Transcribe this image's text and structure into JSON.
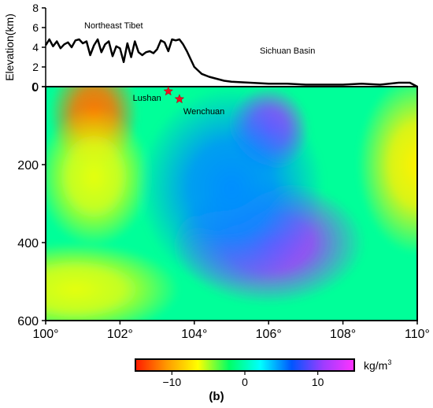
{
  "figure_label": "(b)",
  "chart_data": [
    {
      "type": "line",
      "panel": "elevation-profile",
      "ylabel": "Elevation(km)",
      "ylim": [
        0,
        8
      ],
      "yticks": [
        0,
        2,
        4,
        6,
        8
      ],
      "xlim": [
        100,
        110
      ],
      "series": [
        {
          "x": [
            100.0,
            100.1,
            100.2,
            100.3,
            100.4,
            100.5,
            100.6,
            100.7,
            100.8,
            100.9,
            101.0,
            101.1,
            101.2,
            101.3,
            101.4,
            101.5,
            101.6,
            101.7,
            101.8,
            101.9,
            102.0,
            102.1,
            102.2,
            102.3,
            102.4,
            102.5,
            102.6,
            102.7,
            102.8,
            102.9,
            103.0,
            103.1,
            103.2,
            103.3,
            103.4,
            103.5,
            103.6,
            103.7,
            103.8,
            103.9,
            104.0,
            104.2,
            104.4,
            104.6,
            104.8,
            105.0,
            105.5,
            106.0,
            106.5,
            107.0,
            107.5,
            108.0,
            108.5,
            109.0,
            109.5,
            109.8,
            110.0
          ],
          "y": [
            4.2,
            4.8,
            4.1,
            4.6,
            3.9,
            4.3,
            4.5,
            4.0,
            4.7,
            4.8,
            4.4,
            4.6,
            3.2,
            4.2,
            4.8,
            3.5,
            4.3,
            4.6,
            3.1,
            4.1,
            3.9,
            2.5,
            4.4,
            3.0,
            4.6,
            3.5,
            3.2,
            3.5,
            3.6,
            3.4,
            3.8,
            4.7,
            4.5,
            3.6,
            4.8,
            4.7,
            4.8,
            4.3,
            3.6,
            2.8,
            2.0,
            1.3,
            1.0,
            0.8,
            0.6,
            0.5,
            0.4,
            0.3,
            0.3,
            0.2,
            0.2,
            0.2,
            0.3,
            0.2,
            0.4,
            0.4,
            0.0
          ]
        }
      ],
      "annotations": [
        "Northeast Tibet",
        "Sichuan Basin"
      ]
    },
    {
      "type": "heatmap",
      "panel": "density-anomaly-section",
      "xlim": [
        100,
        110
      ],
      "xticks": [
        100,
        102,
        104,
        106,
        108,
        110
      ],
      "xtick_labels": [
        "100°",
        "102°",
        "104°",
        "106°",
        "108°",
        "110°"
      ],
      "ylim": [
        600,
        0
      ],
      "yticks": [
        0,
        200,
        400,
        600
      ],
      "colorbar": {
        "label": "kg/m",
        "label_superscript": "3",
        "range": [
          -15,
          15
        ],
        "ticks": [
          -10,
          0,
          10
        ],
        "tick_labels": [
          "−10",
          "0",
          "10"
        ],
        "stops": [
          "#ff1a00",
          "#ff9a00",
          "#ffff00",
          "#00ff66",
          "#00ffff",
          "#0055ff",
          "#9d3cff",
          "#ff33ff"
        ]
      },
      "blobs": [
        {
          "x": 101.3,
          "y": 70,
          "rx": 1.2,
          "ry": 140,
          "value": -12
        },
        {
          "x": 101.3,
          "y": 230,
          "rx": 1.5,
          "ry": 180,
          "value": -6
        },
        {
          "x": 110.0,
          "y": 200,
          "rx": 1.6,
          "ry": 230,
          "value": -7
        },
        {
          "x": 100.8,
          "y": 520,
          "rx": 2.8,
          "ry": 120,
          "value": -6
        },
        {
          "x": 106.0,
          "y": 110,
          "rx": 1.1,
          "ry": 110,
          "value": 11
        },
        {
          "x": 106.0,
          "y": 400,
          "rx": 2.6,
          "ry": 160,
          "value": 11
        },
        {
          "x": 105.0,
          "y": 260,
          "rx": 2.5,
          "ry": 260,
          "value": 5
        }
      ],
      "markers": [
        {
          "name": "Lushan",
          "lon": 103.3,
          "depth": 12
        },
        {
          "name": "Wenchuan",
          "lon": 103.6,
          "depth": 32
        }
      ]
    }
  ]
}
